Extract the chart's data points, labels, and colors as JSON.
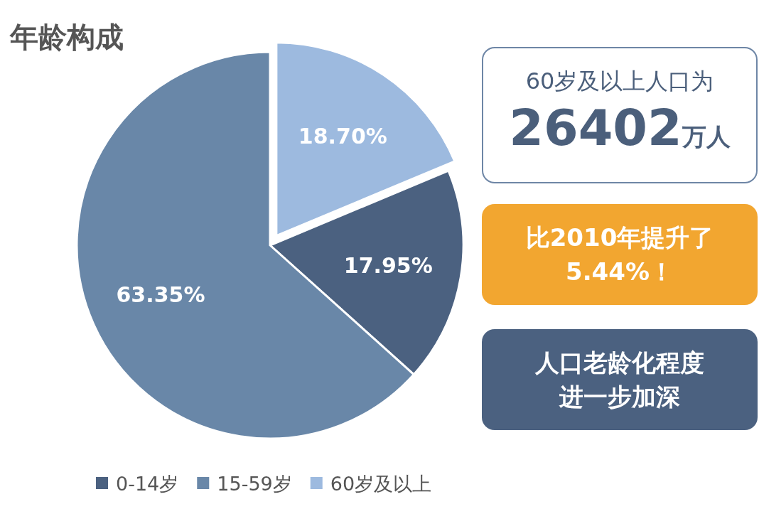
{
  "chart_data": {
    "type": "pie",
    "title": "年龄构成",
    "categories": [
      "0-14岁",
      "15-59岁",
      "60岁及以上"
    ],
    "values": [
      17.95,
      63.35,
      18.7
    ],
    "colors": [
      "#4b6180",
      "#6987a8",
      "#9dbadf"
    ],
    "value_labels": [
      "17.95%",
      "63.35%",
      "18.70%"
    ],
    "legend": "bottom",
    "annotations": [
      "60岁及以上人口为",
      "26402万人",
      "比2010年提升了",
      "5.44%！",
      "人口老龄化程度",
      "进一步加深"
    ]
  }
}
